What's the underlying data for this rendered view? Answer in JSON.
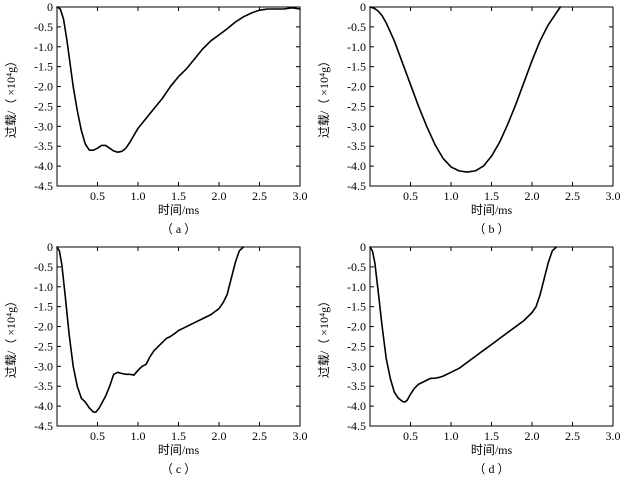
{
  "chart_data": [
    {
      "type": "line",
      "caption": "（ a ）",
      "xlabel": "时间/ms",
      "ylabel": "过载/（ ×10⁴g）",
      "xlim": [
        0,
        3.0
      ],
      "ylim": [
        -4.5,
        0
      ],
      "x_ticks": [
        "0.5",
        "1.0",
        "1.5",
        "2.0",
        "2.5",
        "3.0"
      ],
      "y_ticks": [
        "0",
        "-0.5",
        "-1.0",
        "-1.5",
        "-2.0",
        "-2.5",
        "-3.0",
        "-3.5",
        "-4.0",
        "-4.5"
      ],
      "grid": false,
      "series": [
        {
          "x": [
            0.0,
            0.04,
            0.08,
            0.12,
            0.16,
            0.2,
            0.25,
            0.3,
            0.35,
            0.4,
            0.45,
            0.5,
            0.55,
            0.6,
            0.65,
            0.7,
            0.75,
            0.8,
            0.85,
            0.9,
            1.0,
            1.1,
            1.2,
            1.3,
            1.4,
            1.5,
            1.6,
            1.7,
            1.8,
            1.9,
            2.0,
            2.1,
            2.2,
            2.3,
            2.4,
            2.5,
            2.6,
            2.7,
            2.8,
            2.9,
            3.0
          ],
          "y": [
            0.0,
            -0.05,
            -0.3,
            -0.8,
            -1.4,
            -2.0,
            -2.6,
            -3.1,
            -3.45,
            -3.6,
            -3.6,
            -3.55,
            -3.48,
            -3.48,
            -3.55,
            -3.62,
            -3.65,
            -3.63,
            -3.55,
            -3.4,
            -3.05,
            -2.8,
            -2.55,
            -2.3,
            -2.0,
            -1.75,
            -1.55,
            -1.3,
            -1.05,
            -0.85,
            -0.7,
            -0.55,
            -0.38,
            -0.25,
            -0.15,
            -0.08,
            -0.05,
            -0.05,
            -0.05,
            -0.02,
            -0.05
          ]
        }
      ]
    },
    {
      "type": "line",
      "caption": "（ b ）",
      "xlabel": "时间/ms",
      "ylabel": "过载/（ ×10⁴g）",
      "xlim": [
        0,
        3.0
      ],
      "ylim": [
        -4.5,
        0
      ],
      "x_ticks": [
        "0.5",
        "1.0",
        "1.5",
        "2.0",
        "2.5",
        "3.0"
      ],
      "y_ticks": [
        "0",
        "-0.5",
        "-1.0",
        "-1.5",
        "-2.0",
        "-2.5",
        "-3.0",
        "-3.5",
        "-4.0",
        "-4.5"
      ],
      "grid": false,
      "series": [
        {
          "x": [
            0.0,
            0.05,
            0.1,
            0.15,
            0.2,
            0.3,
            0.4,
            0.5,
            0.6,
            0.7,
            0.8,
            0.9,
            1.0,
            1.1,
            1.2,
            1.3,
            1.4,
            1.5,
            1.6,
            1.7,
            1.8,
            1.9,
            2.0,
            2.1,
            2.2,
            2.3,
            2.35
          ],
          "y": [
            0.0,
            -0.03,
            -0.1,
            -0.22,
            -0.4,
            -0.85,
            -1.4,
            -1.95,
            -2.5,
            -3.0,
            -3.45,
            -3.8,
            -4.02,
            -4.12,
            -4.15,
            -4.12,
            -4.0,
            -3.75,
            -3.4,
            -2.95,
            -2.45,
            -1.9,
            -1.35,
            -0.85,
            -0.45,
            -0.15,
            0.0
          ]
        }
      ]
    },
    {
      "type": "line",
      "caption": "（ c ）",
      "xlabel": "时间/ms",
      "ylabel": "过载/（ ×10⁴g）",
      "xlim": [
        0,
        3.0
      ],
      "ylim": [
        -4.5,
        0
      ],
      "x_ticks": [
        "0.5",
        "1.0",
        "1.5",
        "2.0",
        "2.5",
        "3.0"
      ],
      "y_ticks": [
        "0",
        "-0.5",
        "-1.0",
        "-1.5",
        "-2.0",
        "-2.5",
        "-3.0",
        "-3.5",
        "-4.0",
        "-4.5"
      ],
      "grid": false,
      "series": [
        {
          "x": [
            0.0,
            0.03,
            0.06,
            0.1,
            0.15,
            0.2,
            0.25,
            0.3,
            0.35,
            0.4,
            0.45,
            0.48,
            0.52,
            0.56,
            0.6,
            0.65,
            0.7,
            0.75,
            0.8,
            0.85,
            0.9,
            0.95,
            1.0,
            1.05,
            1.1,
            1.15,
            1.2,
            1.25,
            1.3,
            1.35,
            1.4,
            1.45,
            1.5,
            1.55,
            1.6,
            1.7,
            1.8,
            1.9,
            2.0,
            2.05,
            2.1,
            2.15,
            2.2,
            2.25,
            2.3
          ],
          "y": [
            0.0,
            -0.1,
            -0.45,
            -1.2,
            -2.2,
            -3.0,
            -3.5,
            -3.8,
            -3.9,
            -4.05,
            -4.15,
            -4.15,
            -4.05,
            -3.9,
            -3.75,
            -3.5,
            -3.2,
            -3.15,
            -3.18,
            -3.2,
            -3.2,
            -3.22,
            -3.1,
            -3.0,
            -2.95,
            -2.75,
            -2.6,
            -2.5,
            -2.4,
            -2.3,
            -2.25,
            -2.18,
            -2.1,
            -2.05,
            -2.0,
            -1.9,
            -1.8,
            -1.7,
            -1.55,
            -1.4,
            -1.2,
            -0.8,
            -0.4,
            -0.1,
            0.0
          ]
        }
      ]
    },
    {
      "type": "line",
      "caption": "（ d ）",
      "xlabel": "时间/ms",
      "ylabel": "过载/（ ×10⁴g）",
      "xlim": [
        0,
        3.0
      ],
      "ylim": [
        -4.5,
        0
      ],
      "x_ticks": [
        "0.5",
        "1.0",
        "1.5",
        "2.0",
        "2.5",
        "3.0"
      ],
      "y_ticks": [
        "0",
        "-0.5",
        "-1.0",
        "-1.5",
        "-2.0",
        "-2.5",
        "-3.0",
        "-3.5",
        "-4.0",
        "-4.5"
      ],
      "grid": false,
      "series": [
        {
          "x": [
            0.0,
            0.03,
            0.06,
            0.1,
            0.15,
            0.2,
            0.25,
            0.3,
            0.35,
            0.4,
            0.43,
            0.46,
            0.5,
            0.55,
            0.6,
            0.65,
            0.7,
            0.75,
            0.8,
            0.85,
            0.9,
            1.0,
            1.1,
            1.2,
            1.3,
            1.4,
            1.5,
            1.6,
            1.7,
            1.8,
            1.9,
            2.0,
            2.05,
            2.1,
            2.15,
            2.2,
            2.25,
            2.3
          ],
          "y": [
            0.0,
            -0.1,
            -0.4,
            -1.1,
            -2.0,
            -2.8,
            -3.3,
            -3.65,
            -3.8,
            -3.88,
            -3.9,
            -3.85,
            -3.7,
            -3.55,
            -3.45,
            -3.4,
            -3.35,
            -3.3,
            -3.3,
            -3.28,
            -3.25,
            -3.15,
            -3.05,
            -2.9,
            -2.75,
            -2.6,
            -2.45,
            -2.3,
            -2.15,
            -2.0,
            -1.85,
            -1.65,
            -1.5,
            -1.2,
            -0.8,
            -0.4,
            -0.1,
            0.0
          ]
        }
      ]
    }
  ]
}
